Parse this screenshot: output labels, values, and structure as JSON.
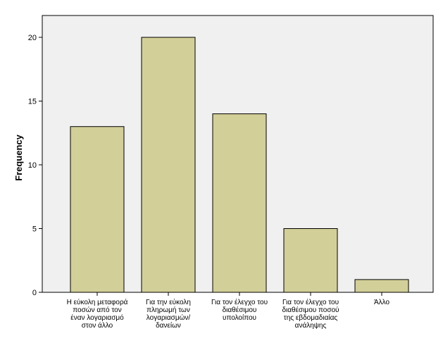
{
  "chart_data": {
    "type": "bar",
    "title": "",
    "xlabel": "",
    "ylabel": "Frequency",
    "ylim": [
      0,
      20
    ],
    "yticks": [
      0,
      5,
      10,
      15,
      20
    ],
    "grid": false,
    "categories": [
      [
        "Η εύκολη μεταφορά",
        "ποσών από τον",
        "έναν λογαριασμό",
        "στον άλλο"
      ],
      [
        "Για την εύκολη",
        "πληρωμή των",
        "λογαριασμών/",
        "δανείων"
      ],
      [
        "Για τον έλεγχο του",
        "διαθέσιμου",
        "υπολοίπου"
      ],
      [
        "Για τον έλεγχο του",
        "διαθέσιμου ποσού",
        "της εβδομαδιαίας",
        "ανάληψης"
      ],
      [
        "Άλλο"
      ]
    ],
    "values": [
      13,
      20,
      14,
      5,
      1
    ],
    "colors": {
      "bar_fill": "#d3cf99",
      "bar_stroke": "#000000",
      "plot_background": "#f0f0f0"
    }
  }
}
